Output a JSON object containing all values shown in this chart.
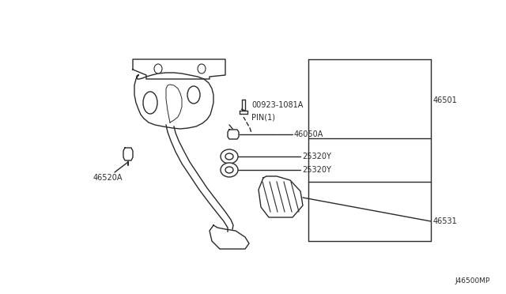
{
  "bg_color": "#ffffff",
  "line_color": "#2a2a2a",
  "text_color": "#2a2a2a",
  "fig_width": 6.4,
  "fig_height": 3.72,
  "dpi": 100,
  "watermark": "J46500MP",
  "label_texts": {
    "46501": "46501",
    "46050A": "46050A",
    "25320Y_top": "25320Y",
    "25320Y_bot": "25320Y",
    "46520A": "46520A",
    "46531": "46531",
    "00923_1081A": "00923-1081A",
    "PIN_1": "PIN(1)"
  }
}
